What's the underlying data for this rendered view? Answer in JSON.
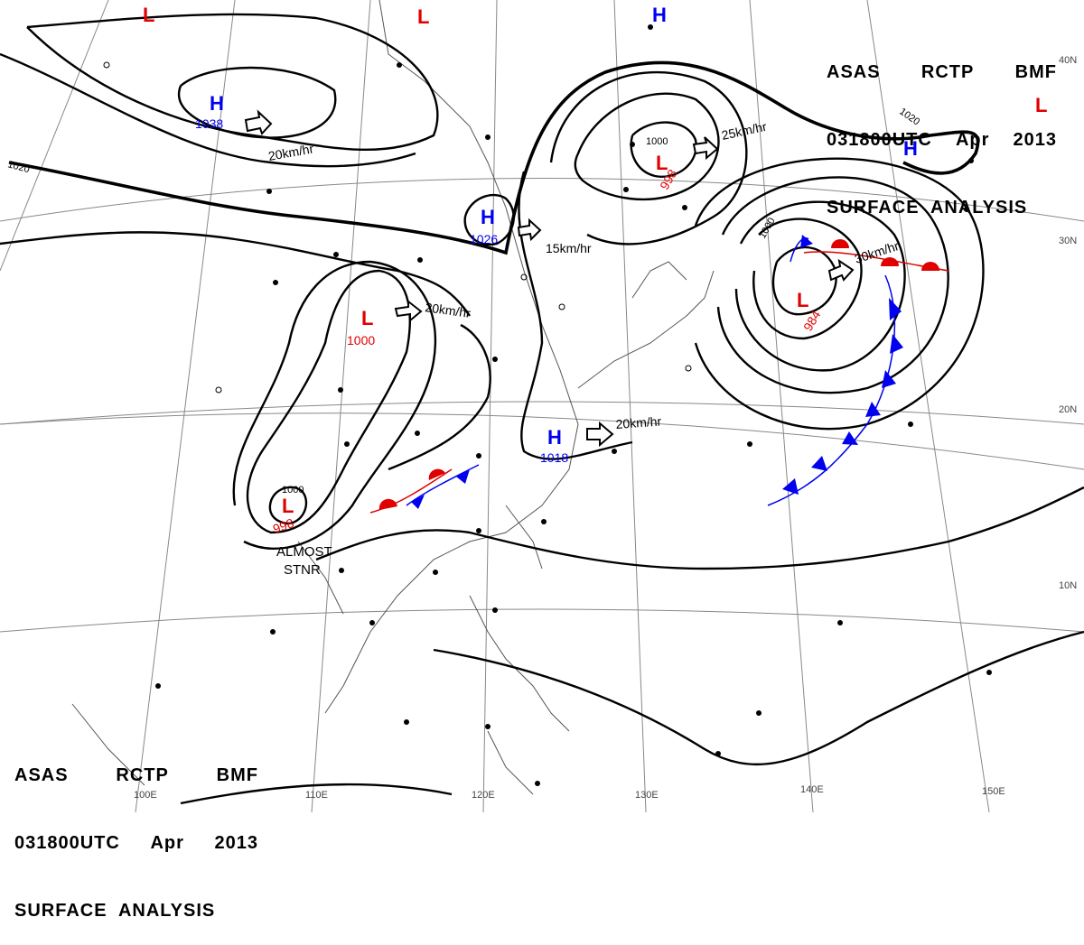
{
  "header": {
    "line1": [
      "ASAS",
      "RCTP",
      "BMF"
    ],
    "line2": [
      "031800UTC",
      "Apr",
      "2013"
    ],
    "line3": "SURFACE  ANALYSIS"
  },
  "colors": {
    "high": "#0000ee",
    "low": "#e00000",
    "isobar": "#000000",
    "grid": "#777777",
    "coast": "#555555"
  },
  "centers": [
    {
      "type": "H",
      "pressure": "1038"
    },
    {
      "type": "H",
      "pressure": "1026"
    },
    {
      "type": "H",
      "pressure": "1018"
    },
    {
      "type": "H",
      "pressure": ""
    },
    {
      "type": "H",
      "pressure": ""
    },
    {
      "type": "L",
      "pressure": "998"
    },
    {
      "type": "L",
      "pressure": "984"
    },
    {
      "type": "L",
      "pressure": "1000"
    },
    {
      "type": "L",
      "pressure": "998"
    },
    {
      "type": "L",
      "pressure": ""
    },
    {
      "type": "L",
      "pressure": ""
    },
    {
      "type": "L",
      "pressure": ""
    }
  ],
  "motion_labels": [
    "20km/hr",
    "25km/hr",
    "15km/hr",
    "20km/hr",
    "30km/hr",
    "20km/hr"
  ],
  "isobar_labels": [
    "1020",
    "1020",
    "1000",
    "1000",
    "1000"
  ],
  "annotation": [
    "ALMOST",
    "STNR"
  ],
  "longitude_labels": [
    "100E",
    "110E",
    "120E",
    "130E",
    "140E",
    "150E"
  ],
  "latitude_labels": [
    "40N",
    "30N",
    "20N",
    "10N"
  ]
}
